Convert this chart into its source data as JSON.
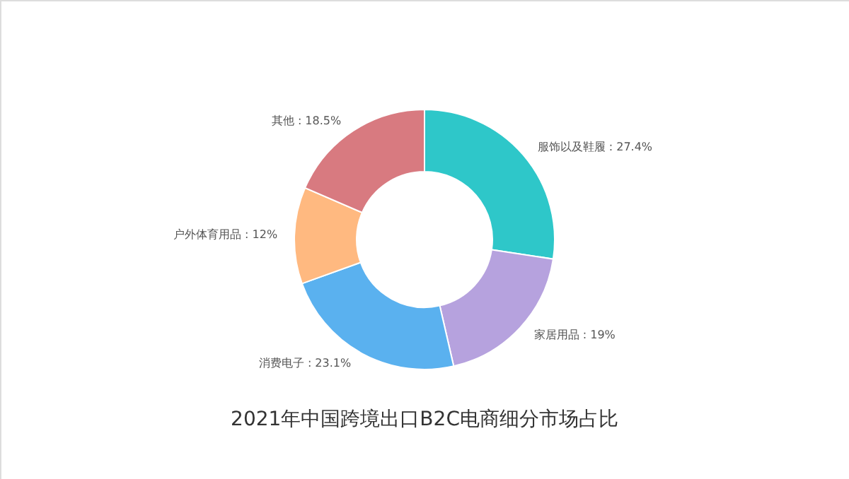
{
  "chart_data": {
    "type": "donut",
    "title": "2021年中国跨境出口B2C电商细分市场占比",
    "categories": [
      "服饰以及鞋履",
      "家居用品",
      "消费电子",
      "户外体育用品",
      "其他"
    ],
    "values": [
      27.4,
      19,
      23.1,
      12,
      18.5
    ],
    "value_labels": [
      "27.4%",
      "19%",
      "23.1%",
      "12%",
      "18.5%"
    ],
    "colors": [
      "#2ec7c9",
      "#b6a2de",
      "#5ab1ef",
      "#ffb980",
      "#d87a80"
    ]
  }
}
